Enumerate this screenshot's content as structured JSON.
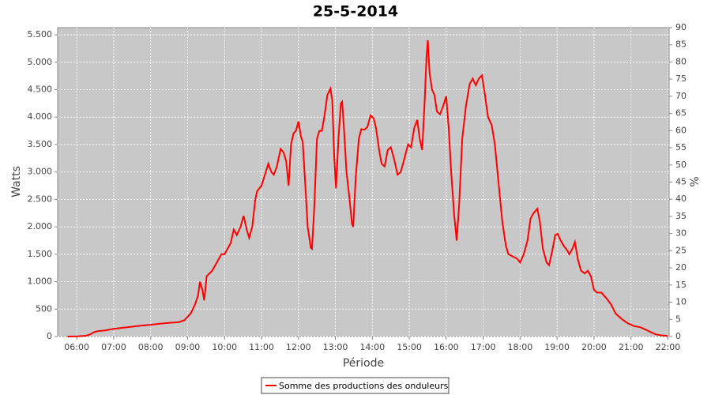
{
  "chart_data": {
    "type": "line",
    "title": "25-5-2014",
    "x_label": "Période",
    "y_label": "Watts",
    "y2_label": "%",
    "x": [
      "05:45",
      "06:00",
      "06:15",
      "06:22",
      "06:28",
      "06:35",
      "06:45",
      "07:00",
      "07:15",
      "07:30",
      "07:45",
      "08:00",
      "08:15",
      "08:30",
      "08:45",
      "08:55",
      "09:05",
      "09:12",
      "09:17",
      "09:20",
      "09:24",
      "09:27",
      "09:31",
      "09:40",
      "09:50",
      "09:55",
      "10:00",
      "10:10",
      "10:15",
      "10:20",
      "10:26",
      "10:31",
      "10:36",
      "10:40",
      "10:45",
      "10:50",
      "10:53",
      "11:00",
      "11:07",
      "11:11",
      "11:16",
      "11:20",
      "11:25",
      "11:31",
      "11:36",
      "11:40",
      "11:44",
      "11:48",
      "11:52",
      "11:56",
      "12:00",
      "12:04",
      "12:07",
      "12:11",
      "12:15",
      "12:20",
      "12:22",
      "12:26",
      "12:30",
      "12:34",
      "12:38",
      "12:42",
      "12:47",
      "12:52",
      "12:55",
      "12:58",
      "13:01",
      "13:05",
      "13:09",
      "13:11",
      "13:14",
      "13:18",
      "13:23",
      "13:27",
      "13:29",
      "13:33",
      "13:38",
      "13:42",
      "13:47",
      "13:52",
      "13:57",
      "14:02",
      "14:06",
      "14:11",
      "14:15",
      "14:20",
      "14:25",
      "14:30",
      "14:35",
      "14:41",
      "14:46",
      "14:51",
      "14:58",
      "15:03",
      "15:08",
      "15:13",
      "15:17",
      "15:21",
      "15:25",
      "15:28",
      "15:30",
      "15:33",
      "15:37",
      "15:41",
      "15:45",
      "15:50",
      "15:55",
      "16:00",
      "16:04",
      "16:08",
      "16:13",
      "16:17",
      "16:21",
      "16:26",
      "16:32",
      "16:38",
      "16:43",
      "16:48",
      "16:53",
      "16:58",
      "17:03",
      "17:08",
      "17:14",
      "17:19",
      "17:25",
      "17:31",
      "17:37",
      "17:41",
      "17:48",
      "17:55",
      "18:00",
      "18:06",
      "18:12",
      "18:17",
      "18:22",
      "18:28",
      "18:32",
      "18:37",
      "18:43",
      "18:47",
      "18:52",
      "18:57",
      "19:01",
      "19:06",
      "19:11",
      "19:16",
      "19:20",
      "19:25",
      "19:29",
      "19:34",
      "19:39",
      "19:45",
      "19:50",
      "19:55",
      "20:00",
      "20:05",
      "20:12",
      "20:20",
      "20:28",
      "20:35",
      "20:45",
      "20:55",
      "21:05",
      "21:15",
      "21:25",
      "21:32",
      "21:40",
      "21:50",
      "22:00"
    ],
    "series": [
      {
        "name": "Somme des productions des onduleurs",
        "color": "#ff0000",
        "values": [
          0,
          5,
          15,
          40,
          80,
          100,
          110,
          140,
          160,
          180,
          200,
          215,
          235,
          250,
          260,
          300,
          420,
          580,
          750,
          1000,
          850,
          660,
          1100,
          1200,
          1400,
          1500,
          1500,
          1700,
          1950,
          1850,
          2000,
          2200,
          1950,
          1800,
          2000,
          2500,
          2650,
          2750,
          3000,
          3150,
          3000,
          2950,
          3100,
          3420,
          3350,
          3200,
          2750,
          3500,
          3700,
          3750,
          3920,
          3650,
          3550,
          2800,
          2000,
          1620,
          1600,
          2400,
          3600,
          3750,
          3750,
          4000,
          4400,
          4520,
          4300,
          3300,
          2700,
          3600,
          4250,
          4280,
          3800,
          3000,
          2500,
          2050,
          2000,
          2900,
          3600,
          3780,
          3770,
          3820,
          4030,
          3980,
          3800,
          3400,
          3150,
          3100,
          3400,
          3450,
          3250,
          2950,
          3000,
          3200,
          3500,
          3450,
          3800,
          3950,
          3600,
          3400,
          4300,
          5100,
          5400,
          4800,
          4500,
          4400,
          4100,
          4050,
          4200,
          4380,
          3800,
          3000,
          2200,
          1750,
          2400,
          3600,
          4200,
          4600,
          4700,
          4580,
          4700,
          4760,
          4400,
          4000,
          3850,
          3500,
          2800,
          2100,
          1650,
          1500,
          1460,
          1420,
          1350,
          1500,
          1750,
          2150,
          2250,
          2330,
          2100,
          1600,
          1350,
          1300,
          1550,
          1850,
          1870,
          1750,
          1650,
          1580,
          1500,
          1600,
          1720,
          1400,
          1200,
          1150,
          1200,
          1100,
          850,
          800,
          800,
          700,
          580,
          420,
          320,
          240,
          190,
          170,
          120,
          80,
          40,
          20,
          10
        ]
      }
    ],
    "xlim": [
      "05:29",
      "22:02"
    ],
    "xticks": [
      "06:00",
      "07:00",
      "08:00",
      "09:00",
      "10:00",
      "11:00",
      "12:00",
      "13:00",
      "14:00",
      "15:00",
      "16:00",
      "17:00",
      "18:00",
      "19:00",
      "20:00",
      "21:00",
      "22:00"
    ],
    "ylim": [
      0,
      5630
    ],
    "yticks": [
      0,
      500,
      {
        "value": 1000,
        "label": "1.000"
      },
      {
        "value": 1500,
        "label": "1.500"
      },
      {
        "value": 2000,
        "label": "2.000"
      },
      {
        "value": 2500,
        "label": "2.500"
      },
      {
        "value": 3000,
        "label": "3.000"
      },
      {
        "value": 3500,
        "label": "3.500"
      },
      {
        "value": 4000,
        "label": "4.000"
      },
      {
        "value": 4500,
        "label": "4.500"
      },
      {
        "value": 5000,
        "label": "5.000"
      },
      {
        "value": 5500,
        "label": "5.500"
      }
    ],
    "y2lim": [
      0,
      90
    ],
    "y2ticks": [
      0,
      5,
      10,
      15,
      20,
      25,
      30,
      35,
      40,
      45,
      50,
      55,
      60,
      65,
      70,
      75,
      80,
      85,
      90
    ],
    "grid": true,
    "legend": "bottom"
  }
}
